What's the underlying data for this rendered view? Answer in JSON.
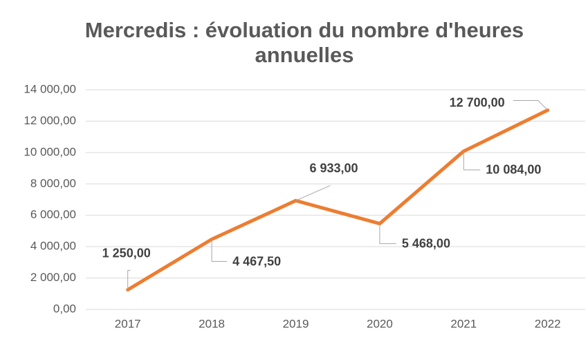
{
  "chart_data": {
    "type": "line",
    "title": [
      "Mercredis : évoluation du nombre d'heures",
      "annuelles"
    ],
    "categories": [
      "2017",
      "2018",
      "2019",
      "2020",
      "2021",
      "2022"
    ],
    "series": [
      {
        "name": "Mercredis",
        "color": "#ed7d31",
        "values": [
          1250,
          4467.5,
          6933,
          5468,
          10084,
          12700
        ],
        "value_labels": [
          "1 250,00",
          "4 467,50",
          "6 933,00",
          "5 468,00",
          "10 084,00",
          "12 700,00"
        ]
      }
    ],
    "ylim": [
      0,
      14000
    ],
    "yticks": [
      {
        "value": 0,
        "label": "0,00"
      },
      {
        "value": 2000,
        "label": "2 000,00"
      },
      {
        "value": 4000,
        "label": "4 000,00"
      },
      {
        "value": 6000,
        "label": "6 000,00"
      },
      {
        "value": 8000,
        "label": "8 000,00"
      },
      {
        "value": 10000,
        "label": "10 000,00"
      },
      {
        "value": 12000,
        "label": "12 000,00"
      },
      {
        "value": 14000,
        "label": "14 000,00"
      }
    ],
    "grid": true
  }
}
